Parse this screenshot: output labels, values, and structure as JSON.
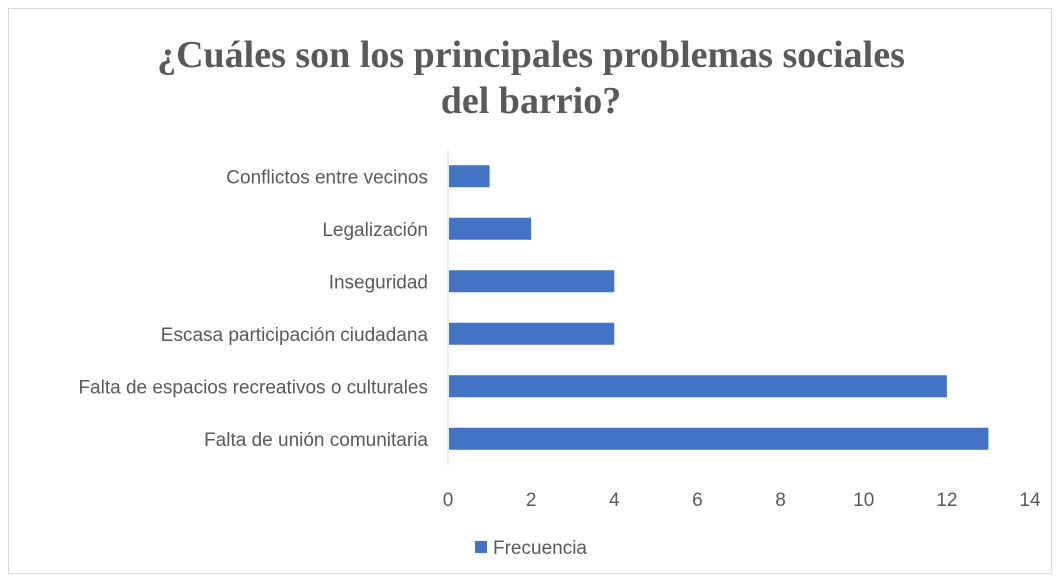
{
  "chart_data": {
    "type": "bar",
    "orientation": "horizontal",
    "title": "¿Cuáles son los principales problemas sociales del barrio?",
    "categories": [
      "Conflictos entre vecinos",
      "Legalización",
      "Inseguridad",
      "Escasa participación ciudadana",
      "Falta de espacios recreativos o culturales",
      "Falta de unión comunitaria"
    ],
    "series": [
      {
        "name": "Frecuencia",
        "values": [
          1,
          2,
          4,
          4,
          12,
          13
        ]
      }
    ],
    "xlim": [
      0,
      14
    ],
    "x_ticks": [
      "0",
      "2",
      "4",
      "6",
      "8",
      "10",
      "12",
      "14"
    ],
    "grid": false,
    "legend": "bottom"
  },
  "colors": {
    "bar": "#4472c4",
    "text": "#595959",
    "axis": "#d9d9d9"
  }
}
